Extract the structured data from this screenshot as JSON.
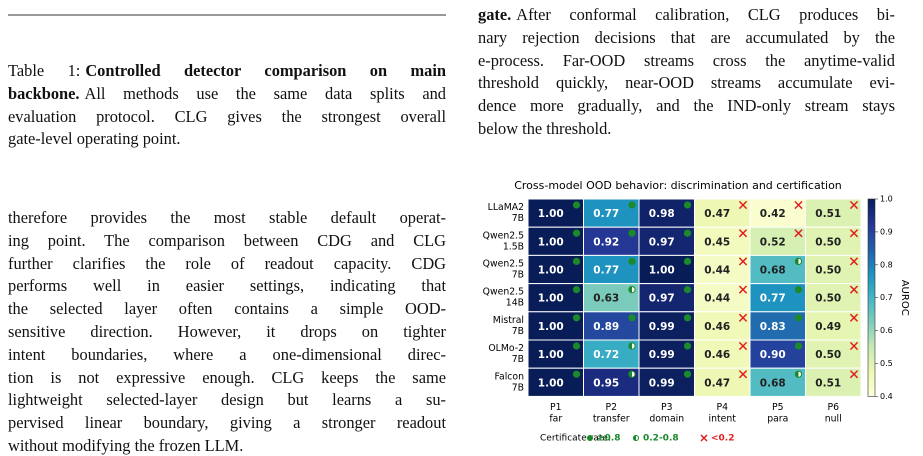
{
  "caption": {
    "lines": [
      [
        {
          "text": "Table 1:"
        },
        {
          "text": "Controlled detector comparison on main",
          "bold": true
        }
      ],
      [
        {
          "text": "backbone.",
          "bold": true
        },
        {
          "text": "All methods use the same data splits and"
        }
      ],
      [
        {
          "text": "evaluation protocol. CLG gives the strongest overall"
        }
      ],
      [
        {
          "text": "gate-level operating point."
        }
      ]
    ]
  },
  "left_paragraph": {
    "lines": [
      "therefore provides the most stable default operat-",
      "ing point. The comparison between CDG and CLG",
      "further clarifies the role of readout capacity. CDG",
      "performs well in easier settings, indicating that",
      "the selected layer often contains a simple OOD-",
      "sensitive direction. However, it drops on tighter",
      "intent boundaries, where a one-dimensional direc-",
      "tion is not expressive enough. CLG keeps the same",
      "lightweight selected-layer design but learns a su-",
      "pervised linear boundary, giving a stronger readout",
      "without modifying the frozen LLM."
    ]
  },
  "right_paragraph": {
    "bold_lead": "gate.",
    "lines": [
      "After conformal calibration, CLG produces bi-",
      "nary rejection decisions that are accumulated by the",
      "e-process. Far-OOD streams cross the anytime-valid",
      "threshold quickly, near-OOD streams accumulate evi-",
      "dence more gradually, and the IND-only stream stays",
      "below the threshold."
    ]
  },
  "chart_data": {
    "type": "heatmap",
    "title": "Cross-model OOD behavior: discrimination and certification",
    "rows": [
      [
        "LLaMA2",
        "7B"
      ],
      [
        "Qwen2.5",
        "1.5B"
      ],
      [
        "Qwen2.5",
        "7B"
      ],
      [
        "Qwen2.5",
        "14B"
      ],
      [
        "Mistral",
        "7B"
      ],
      [
        "OLMo-2",
        "7B"
      ],
      [
        "Falcon",
        "7B"
      ]
    ],
    "columns": [
      [
        "P1",
        "far"
      ],
      [
        "P2",
        "transfer"
      ],
      [
        "P3",
        "domain"
      ],
      [
        "P4",
        "intent"
      ],
      [
        "P5",
        "para"
      ],
      [
        "P6",
        "null"
      ]
    ],
    "values": [
      [
        1,
        0.77,
        0.98,
        0.47,
        0.42,
        0.51
      ],
      [
        1,
        0.92,
        0.97,
        0.45,
        0.52,
        0.5
      ],
      [
        1,
        0.77,
        1,
        0.44,
        0.68,
        0.5
      ],
      [
        1,
        0.63,
        0.97,
        0.44,
        0.77,
        0.5
      ],
      [
        1,
        0.89,
        0.99,
        0.46,
        0.83,
        0.49
      ],
      [
        1,
        0.72,
        0.99,
        0.46,
        0.9,
        0.5
      ],
      [
        1,
        0.95,
        0.99,
        0.47,
        0.68,
        0.51
      ]
    ],
    "value_labels": [
      [
        "1.00",
        "0.77",
        "0.98",
        "0.47",
        "0.42",
        "0.51"
      ],
      [
        "1.00",
        "0.92",
        "0.97",
        "0.45",
        "0.52",
        "0.50"
      ],
      [
        "1.00",
        "0.77",
        "1.00",
        "0.44",
        "0.68",
        "0.50"
      ],
      [
        "1.00",
        "0.63",
        "0.97",
        "0.44",
        "0.77",
        "0.50"
      ],
      [
        "1.00",
        "0.89",
        "0.99",
        "0.46",
        "0.83",
        "0.49"
      ],
      [
        "1.00",
        "0.72",
        "0.99",
        "0.46",
        "0.90",
        "0.50"
      ],
      [
        "1.00",
        "0.95",
        "0.99",
        "0.47",
        "0.68",
        "0.51"
      ]
    ],
    "markers": [
      [
        0,
        0,
        0,
        2,
        2,
        2
      ],
      [
        0,
        0,
        0,
        2,
        2,
        2
      ],
      [
        0,
        0,
        0,
        2,
        1,
        2
      ],
      [
        0,
        1,
        0,
        2,
        0,
        2
      ],
      [
        0,
        0,
        0,
        2,
        0,
        2
      ],
      [
        0,
        1,
        0,
        2,
        0,
        2
      ],
      [
        0,
        1,
        0,
        2,
        1,
        2
      ]
    ],
    "colormap": "YlGnBu",
    "zlim": [
      0.4,
      1
    ],
    "zticks": [
      0.4,
      0.5,
      0.6,
      0.7,
      0.8,
      0.9,
      {
        "value": 1,
        "label": "1.0"
      }
    ],
    "colorbar_label": "AUROC",
    "certificate_legend": {
      "title": "Certificate rate:",
      "items": [
        {
          "label": "≥0.8",
          "symbol": "dot",
          "color": "#1a8a2a"
        },
        {
          "label": "0.2-0.8",
          "symbol": "half",
          "color": "#1a8a2a"
        },
        {
          "label": "<0.2",
          "symbol": "cross",
          "color": "#e02020"
        }
      ]
    }
  }
}
